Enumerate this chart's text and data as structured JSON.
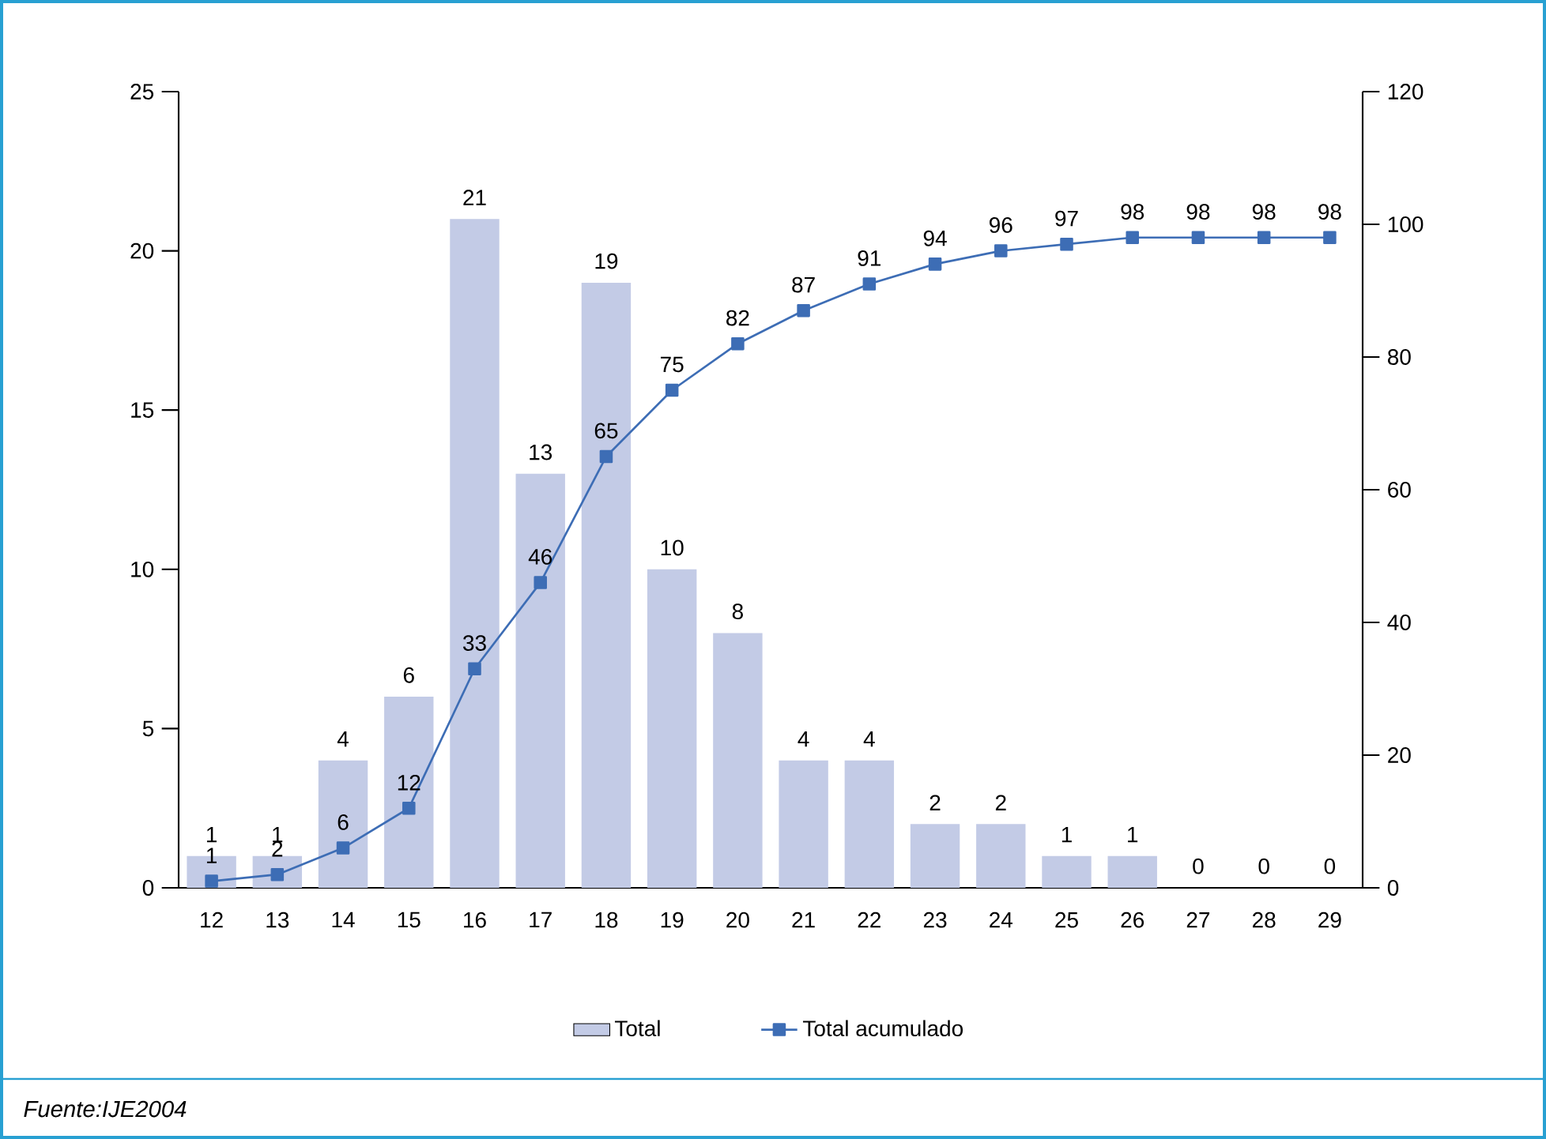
{
  "chart_data": {
    "type": "bar",
    "categories": [
      "12",
      "13",
      "14",
      "15",
      "16",
      "17",
      "18",
      "19",
      "20",
      "21",
      "22",
      "23",
      "24",
      "25",
      "26",
      "27",
      "28",
      "29"
    ],
    "series": [
      {
        "name": "Total",
        "color": "#c3cbe6",
        "values": [
          1,
          1,
          4,
          6,
          21,
          13,
          19,
          10,
          8,
          4,
          4,
          2,
          2,
          1,
          1,
          0,
          0,
          0
        ]
      },
      {
        "name": "Total acumulado",
        "type": "line",
        "axis": "y2",
        "color": "#3d6db5",
        "marker": "square",
        "line_style": "solid",
        "values": [
          1,
          2,
          6,
          12,
          33,
          46,
          65,
          75,
          82,
          87,
          91,
          94,
          96,
          97,
          98,
          98,
          98,
          98
        ]
      }
    ],
    "ylim": [
      0,
      25
    ],
    "yticks": [
      0,
      5,
      10,
      15,
      20,
      25
    ],
    "y2lim": [
      0,
      120
    ],
    "y2ticks": [
      0,
      20,
      40,
      60,
      80,
      100,
      120
    ],
    "data_labels": true,
    "grid": false,
    "legend": "bottom",
    "annotations": [
      "Fuente:IJE2004"
    ]
  }
}
